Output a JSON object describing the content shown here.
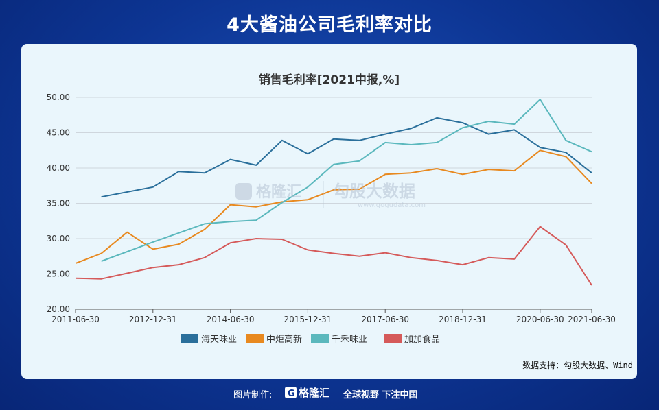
{
  "page": {
    "title": "4大酱油公司毛利率对比"
  },
  "chart_data": {
    "type": "line",
    "title": "销售毛利率[2021中报,%]",
    "x": [
      "2011-06-30",
      "2011-12-31",
      "2012-06-30",
      "2012-12-31",
      "2013-06-30",
      "2013-12-31",
      "2014-06-30",
      "2014-12-31",
      "2015-06-30",
      "2015-12-31",
      "2016-06-30",
      "2016-12-31",
      "2017-06-30",
      "2017-12-31",
      "2018-06-30",
      "2018-12-31",
      "2019-06-30",
      "2019-12-31",
      "2020-06-30",
      "2020-12-31",
      "2021-06-30"
    ],
    "xtick_labels": [
      "2011-06-30",
      "2012-12-31",
      "2014-06-30",
      "2015-12-31",
      "2017-06-30",
      "2018-12-31",
      "2020-06-30",
      "2021-06-30"
    ],
    "ylim": [
      20,
      50
    ],
    "yticks": [
      "20.00",
      "25.00",
      "30.00",
      "35.00",
      "40.00",
      "45.00",
      "50.00"
    ],
    "grid": true,
    "legend_position": "bottom",
    "series": [
      {
        "name": "海天味业",
        "color": "#2a6f9b",
        "values": [
          null,
          35.9,
          null,
          37.3,
          39.5,
          39.3,
          41.2,
          40.4,
          43.9,
          42.0,
          44.1,
          43.9,
          44.8,
          45.6,
          47.1,
          46.4,
          44.8,
          45.4,
          42.9,
          42.2,
          39.3
        ]
      },
      {
        "name": "中炬高新",
        "color": "#e8891f",
        "values": [
          26.5,
          27.9,
          30.9,
          28.5,
          29.2,
          31.3,
          34.8,
          34.5,
          35.2,
          35.5,
          36.9,
          37.0,
          39.1,
          39.3,
          39.9,
          39.1,
          39.8,
          39.6,
          42.5,
          41.6,
          37.8
        ]
      },
      {
        "name": "千禾味业",
        "color": "#5bb8bd",
        "values": [
          null,
          26.8,
          null,
          29.5,
          null,
          32.1,
          32.4,
          32.6,
          35.1,
          37.3,
          40.5,
          41.0,
          43.6,
          43.3,
          43.6,
          45.7,
          46.6,
          46.2,
          49.7,
          43.9,
          42.3
        ]
      },
      {
        "name": "加加食品",
        "color": "#d55a5a",
        "values": [
          24.4,
          24.3,
          25.1,
          25.9,
          26.3,
          27.3,
          29.4,
          30.0,
          29.9,
          28.4,
          27.9,
          27.5,
          28.0,
          27.3,
          26.9,
          26.3,
          27.3,
          27.1,
          31.7,
          29.1,
          23.4
        ]
      }
    ]
  },
  "watermark": {
    "left": "格隆汇",
    "right": "勾股大数据",
    "url": "www.gogudata.com"
  },
  "source_note": "数据支持：勾股大数据、Wind",
  "footer": {
    "label": "图片制作:",
    "brand": "格隆汇",
    "slogan": "全球视野 下注中国"
  }
}
